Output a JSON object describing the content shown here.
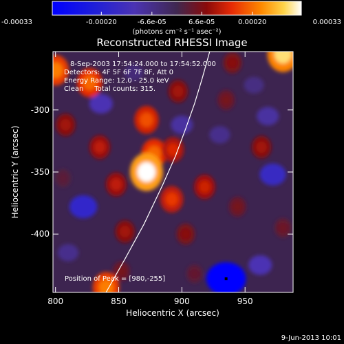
{
  "chart_data": {
    "type": "heatmap",
    "title": "Reconstructed RHESSI Image",
    "xlabel": "Heliocentric X (arcsec)",
    "ylabel": "Heliocentric Y (arcsec)",
    "xlim": [
      798,
      988
    ],
    "ylim": [
      -447,
      -253
    ],
    "xticks": [
      800,
      850,
      900,
      950
    ],
    "yticks": [
      -300,
      -350,
      -400
    ],
    "colorbar": {
      "min": -0.00033,
      "max": 0.00033,
      "tick_values": [
        -0.00033,
        -0.0002,
        -6.6e-05,
        6.6e-05,
        0.0002,
        0.00033
      ],
      "tick_labels": [
        "-0.00033",
        "-0.00020",
        "-6.6e-05",
        "6.6e-05",
        "0.00020",
        "0.00033"
      ],
      "unit_label": "(photons cm⁻² s⁻¹ asec⁻²)"
    },
    "info_lines": [
      "8-Sep-2003 17:54:24.000 to 17:54:52.000",
      "Detectors: 4F 5F 6F 7F 8F, Att 0",
      "Energy Range: 12.0 - 25.0 keV",
      "Clean     Total counts: 315."
    ],
    "peak_text": "Position of Peak = [980,-255]",
    "peak": [
      980,
      -255
    ],
    "marker_point": [
      935,
      -436
    ],
    "limb_curve": [
      [
        840,
        -447
      ],
      [
        855,
        -420
      ],
      [
        870,
        -392
      ],
      [
        885,
        -360
      ],
      [
        895,
        -337
      ],
      [
        903,
        -315
      ],
      [
        910,
        -295
      ],
      [
        916,
        -275
      ],
      [
        922,
        -253
      ]
    ],
    "hot_spots": [
      {
        "x": 800,
        "y": -268,
        "v": 0.00022
      },
      {
        "x": 827,
        "y": -278,
        "v": 0.0002
      },
      {
        "x": 808,
        "y": -312,
        "v": 0.0001
      },
      {
        "x": 835,
        "y": -330,
        "v": 0.00012
      },
      {
        "x": 806,
        "y": -355,
        "v": 3e-05
      },
      {
        "x": 848,
        "y": -360,
        "v": 0.00012
      },
      {
        "x": 872,
        "y": -308,
        "v": 0.00018
      },
      {
        "x": 878,
        "y": -335,
        "v": 0.0002
      },
      {
        "x": 872,
        "y": -350,
        "v": 0.00033
      },
      {
        "x": 893,
        "y": -332,
        "v": 0.00014
      },
      {
        "x": 892,
        "y": -372,
        "v": 0.00016
      },
      {
        "x": 855,
        "y": -398,
        "v": 0.0001
      },
      {
        "x": 903,
        "y": -400,
        "v": 8e-05
      },
      {
        "x": 852,
        "y": -430,
        "v": 6e-05
      },
      {
        "x": 840,
        "y": -443,
        "v": 0.00022
      },
      {
        "x": 918,
        "y": -362,
        "v": 0.00013
      },
      {
        "x": 944,
        "y": -378,
        "v": 6e-05
      },
      {
        "x": 963,
        "y": -330,
        "v": 0.0001
      },
      {
        "x": 980,
        "y": -395,
        "v": 5e-05
      },
      {
        "x": 935,
        "y": -292,
        "v": 6e-05
      },
      {
        "x": 980,
        "y": -255,
        "v": 0.0003
      },
      {
        "x": 940,
        "y": -262,
        "v": 8e-05
      },
      {
        "x": 897,
        "y": -285,
        "v": 0.0001
      },
      {
        "x": 910,
        "y": -432,
        "v": 4e-05
      }
    ],
    "cold_spots": [
      {
        "x": 836,
        "y": -295,
        "v": -0.0001
      },
      {
        "x": 822,
        "y": -378,
        "v": -0.00016
      },
      {
        "x": 900,
        "y": -312,
        "v": -8e-05
      },
      {
        "x": 930,
        "y": -320,
        "v": -6e-05
      },
      {
        "x": 968,
        "y": -305,
        "v": -8e-05
      },
      {
        "x": 972,
        "y": -352,
        "v": -0.00014
      },
      {
        "x": 935,
        "y": -436,
        "v": -0.00033
      },
      {
        "x": 962,
        "y": -425,
        "v": -0.0001
      },
      {
        "x": 810,
        "y": -415,
        "v": -6e-05
      },
      {
        "x": 862,
        "y": -270,
        "v": -4e-05
      },
      {
        "x": 957,
        "y": -280,
        "v": -5e-05
      }
    ]
  },
  "footer": {
    "date": "9-Jun-2013 10:01"
  }
}
